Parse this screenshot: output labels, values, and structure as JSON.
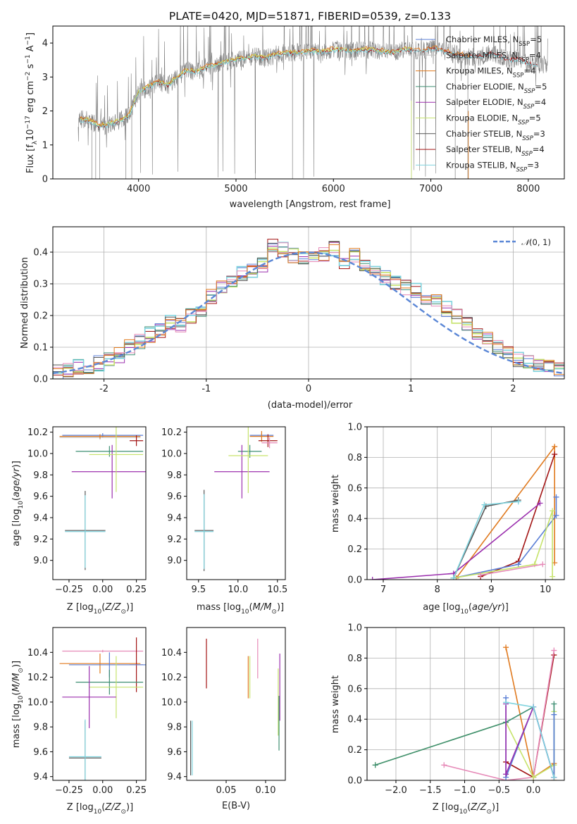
{
  "colors": {
    "Chabrier MILES": "#5b7fd6",
    "Salpeter MILES": "#c0c0c0",
    "Kroupa MILES": "#e07a1f",
    "Chabrier ELODIE": "#3f8f73",
    "Salpeter ELODIE": "#9b2fae",
    "Kroupa ELODIE": "#c6e36b",
    "Chabrier STELIB": "#555555",
    "Salpeter STELIB": "#a31515",
    "Kroupa STELIB": "#7fd3de",
    "extra_pink": "#e68ab8",
    "normal": "#5b87d6"
  },
  "chart_data": [
    {
      "id": "spectrum",
      "type": "line",
      "title": "PLATE=0420, MJD=51871, FIBERID=0539, z=0.133",
      "xlabel": "wavelength [Angstrom, rest frame]",
      "ylabel": "Flux [f_λ 10^-17 erg cm^-2 s^-1 A^-1]",
      "xlim": [
        3120,
        8370
      ],
      "ylim": [
        0,
        4.5
      ],
      "xticks": [
        4000,
        5000,
        6000,
        7000,
        8000
      ],
      "yticks": [
        0,
        1,
        2,
        3,
        4
      ],
      "legend_position": "right",
      "legend": [
        {
          "name": "Chabrier MILES",
          "nssp": "5"
        },
        {
          "name": "Salpeter MILES",
          "nssp": "4"
        },
        {
          "name": "Kroupa MILES",
          "nssp": "4"
        },
        {
          "name": "Chabrier ELODIE",
          "nssp": "5"
        },
        {
          "name": "Salpeter ELODIE",
          "nssp": "4"
        },
        {
          "name": "Kroupa ELODIE",
          "nssp": "5"
        },
        {
          "name": "Chabrier STELIB",
          "nssp": "3"
        },
        {
          "name": "Salpeter STELIB",
          "nssp": "4"
        },
        {
          "name": "Kroupa STELIB",
          "nssp": "3"
        }
      ],
      "model_x": [
        3400,
        3500,
        3600,
        3700,
        3800,
        3900,
        4000,
        4100,
        4200,
        4300,
        4400,
        4500,
        4600,
        4700,
        4800,
        4900,
        5000,
        5100,
        5200,
        5300,
        5400,
        5500,
        5600,
        5700,
        5800,
        5900,
        6000,
        6100,
        6200,
        6300,
        6400,
        6500,
        6600,
        6700,
        6800,
        6900,
        7000,
        7100,
        7200,
        7300,
        7400,
        7500,
        7600,
        7700,
        7800,
        7900,
        8000,
        8100
      ],
      "model_y": [
        1.75,
        1.72,
        1.55,
        1.6,
        1.72,
        1.85,
        2.55,
        2.7,
        2.85,
        2.75,
        3.0,
        3.2,
        3.15,
        3.3,
        3.35,
        3.45,
        3.5,
        3.55,
        3.6,
        3.55,
        3.65,
        3.7,
        3.7,
        3.75,
        3.75,
        3.75,
        3.8,
        3.8,
        3.75,
        3.8,
        3.8,
        3.75,
        3.7,
        3.8,
        3.8,
        3.75,
        3.85,
        3.8,
        3.7,
        3.65,
        3.6,
        3.6,
        3.7,
        3.65,
        3.5,
        3.55,
        3.4,
        3.35
      ],
      "data_range": [
        3380,
        8200
      ]
    },
    {
      "id": "residuals",
      "type": "histogram",
      "xlabel": "(data-model)/error",
      "ylabel": "Normed distribution",
      "xlim": [
        -2.5,
        2.5
      ],
      "ylim": [
        0,
        0.48
      ],
      "xticks": [
        -2,
        -1,
        0,
        1,
        2
      ],
      "yticks": [
        0.0,
        0.1,
        0.2,
        0.3,
        0.4
      ],
      "legend": "N(0,1)",
      "legend_position": "top-right",
      "bin_width": 0.1,
      "bin_centers": [
        -2.45,
        -2.35,
        -2.25,
        -2.15,
        -2.05,
        -1.95,
        -1.85,
        -1.75,
        -1.65,
        -1.55,
        -1.45,
        -1.35,
        -1.25,
        -1.15,
        -1.05,
        -0.95,
        -0.85,
        -0.75,
        -0.65,
        -0.55,
        -0.45,
        -0.35,
        -0.25,
        -0.15,
        -0.05,
        0.05,
        0.15,
        0.25,
        0.35,
        0.45,
        0.55,
        0.65,
        0.75,
        0.85,
        0.95,
        1.05,
        1.15,
        1.25,
        1.35,
        1.45,
        1.55,
        1.65,
        1.75,
        1.85,
        1.95,
        2.05,
        2.15,
        2.25,
        2.35,
        2.45
      ],
      "bin_values": [
        0.02,
        0.03,
        0.04,
        0.035,
        0.05,
        0.06,
        0.075,
        0.1,
        0.12,
        0.14,
        0.15,
        0.18,
        0.17,
        0.2,
        0.22,
        0.26,
        0.29,
        0.3,
        0.33,
        0.34,
        0.36,
        0.42,
        0.41,
        0.39,
        0.38,
        0.38,
        0.39,
        0.41,
        0.37,
        0.39,
        0.36,
        0.34,
        0.32,
        0.3,
        0.29,
        0.28,
        0.26,
        0.25,
        0.22,
        0.2,
        0.17,
        0.15,
        0.13,
        0.1,
        0.09,
        0.06,
        0.05,
        0.04,
        0.035,
        0.03
      ]
    },
    {
      "id": "age-vs-Z",
      "type": "errorbar",
      "xlabel": "Z [log10(Z/Z⊙)]",
      "ylabel": "age [log10(age/yr)]",
      "xlim": [
        -0.37,
        0.32
      ],
      "ylim": [
        8.82,
        10.25
      ],
      "xticks": [
        -0.25,
        0.0,
        0.25
      ],
      "yticks": [
        9.0,
        9.2,
        9.4,
        9.6,
        9.8,
        10.0,
        10.2
      ],
      "points": [
        {
          "c": "Chabrier MILES",
          "x": 0.0,
          "y": 10.17,
          "xe": 0.3,
          "ye": 0.02
        },
        {
          "c": "Salpeter MILES",
          "x": -0.02,
          "y": 10.15,
          "xe": 0.3,
          "ye": 0.02
        },
        {
          "c": "Kroupa MILES",
          "x": -0.02,
          "y": 10.16,
          "xe": 0.3,
          "ye": 0.02
        },
        {
          "c": "Chabrier ELODIE",
          "x": 0.05,
          "y": 10.02,
          "xe": 0.25,
          "ye": 0.05
        },
        {
          "c": "Salpeter ELODIE",
          "x": 0.07,
          "y": 9.83,
          "xe": 0.3,
          "ye": 0.25
        },
        {
          "c": "Kroupa ELODIE",
          "x": 0.1,
          "y": 9.99,
          "xe": 0.2,
          "ye": 0.35
        },
        {
          "c": "Chabrier STELIB",
          "x": -0.13,
          "y": 9.28,
          "xe": 0.15,
          "ye": 0.37
        },
        {
          "c": "Salpeter STELIB",
          "x": 0.25,
          "y": 10.12,
          "xe": 0.05,
          "ye": 0.05
        },
        {
          "c": "Kroupa STELIB",
          "x": -0.13,
          "y": 9.27,
          "xe": 0.15,
          "ye": 0.34
        }
      ]
    },
    {
      "id": "age-vs-mass",
      "type": "errorbar",
      "xlabel": "mass [log10(M/M⊙)]",
      "ylim": [
        8.82,
        10.25
      ],
      "xlim": [
        9.35,
        10.6
      ],
      "xticks": [
        9.5,
        10.0,
        10.5
      ],
      "yticks": [
        9.0,
        9.2,
        9.4,
        9.6,
        9.8,
        10.0,
        10.2
      ],
      "points": [
        {
          "c": "Chabrier MILES",
          "x": 10.3,
          "y": 10.17,
          "xe": 0.15,
          "ye": 0.02
        },
        {
          "c": "Kroupa MILES",
          "x": 10.3,
          "y": 10.16,
          "xe": 0.15,
          "ye": 0.05
        },
        {
          "c": "Chabrier ELODIE",
          "x": 10.15,
          "y": 10.02,
          "xe": 0.15,
          "ye": 0.06
        },
        {
          "c": "Salpeter ELODIE",
          "x": 10.05,
          "y": 9.83,
          "xe": 0.35,
          "ye": 0.25
        },
        {
          "c": "Kroupa ELODIE",
          "x": 10.13,
          "y": 9.98,
          "xe": 0.25,
          "ye": 0.35
        },
        {
          "c": "Chabrier STELIB",
          "x": 9.57,
          "y": 9.28,
          "xe": 0.12,
          "ye": 0.38
        },
        {
          "c": "Salpeter STELIB",
          "x": 10.38,
          "y": 10.12,
          "xe": 0.12,
          "ye": 0.06
        },
        {
          "c": "Kroupa STELIB",
          "x": 9.57,
          "y": 9.27,
          "xe": 0.12,
          "ye": 0.35
        },
        {
          "c": "extra_pink",
          "x": 10.4,
          "y": 10.1,
          "xe": 0.1,
          "ye": 0.05
        }
      ]
    },
    {
      "id": "massweight-vs-age",
      "type": "line",
      "xlabel": "age [log10(age/yr)]",
      "ylabel": "mass weight",
      "xlim": [
        6.7,
        10.35
      ],
      "ylim": [
        0,
        1.0
      ],
      "xticks": [
        7,
        8,
        9,
        10
      ],
      "yticks": [
        0.0,
        0.2,
        0.4,
        0.6,
        0.8,
        1.0
      ],
      "series": [
        {
          "c": "Kroupa MILES",
          "x": [
            8.35,
            10.17,
            10.17
          ],
          "y": [
            0.01,
            0.87,
            0.11
          ]
        },
        {
          "c": "Salpeter STELIB",
          "x": [
            8.8,
            9.5,
            10.17
          ],
          "y": [
            0.02,
            0.12,
            0.82
          ]
        },
        {
          "c": "Salpeter ELODIE",
          "x": [
            6.8,
            8.3,
            9.9
          ],
          "y": [
            0.0,
            0.04,
            0.5
          ]
        },
        {
          "c": "Chabrier MILES",
          "x": [
            8.3,
            9.5,
            10.2,
            10.2
          ],
          "y": [
            0.01,
            0.1,
            0.42,
            0.54
          ]
        },
        {
          "c": "Kroupa ELODIE",
          "x": [
            8.3,
            9.8,
            10.13,
            10.13
          ],
          "y": [
            0.01,
            0.1,
            0.45,
            0.02
          ]
        },
        {
          "c": "Chabrier STELIB",
          "x": [
            8.3,
            8.9,
            9.5
          ],
          "y": [
            0.01,
            0.48,
            0.52
          ]
        },
        {
          "c": "Kroupa STELIB",
          "x": [
            8.3,
            8.87,
            9.5
          ],
          "y": [
            0.01,
            0.49,
            0.51
          ]
        },
        {
          "c": "extra_pink",
          "x": [
            8.8,
            9.95
          ],
          "y": [
            0.03,
            0.1
          ]
        }
      ]
    },
    {
      "id": "mass-vs-Z",
      "type": "errorbar",
      "xlabel": "Z [log10(Z/Z⊙)]",
      "ylabel": "mass [log10(M/M⊙)]",
      "xlim": [
        -0.37,
        0.32
      ],
      "ylim": [
        9.37,
        10.6
      ],
      "xticks": [
        -0.25,
        0.0,
        0.25
      ],
      "yticks": [
        9.4,
        9.6,
        9.8,
        10.0,
        10.2,
        10.4
      ],
      "points": [
        {
          "c": "extra_pink",
          "x": 0.0,
          "y": 10.41,
          "xe": 0.3,
          "ye": 0.01
        },
        {
          "c": "Kroupa MILES",
          "x": -0.02,
          "y": 10.31,
          "xe": 0.3,
          "ye": 0.08
        },
        {
          "c": "Salpeter STELIB",
          "x": 0.25,
          "y": 10.3,
          "xe": 0.05,
          "ye": 0.22
        },
        {
          "c": "Chabrier MILES",
          "x": 0.05,
          "y": 10.3,
          "xe": 0.3,
          "ye": 0.1
        },
        {
          "c": "Chabrier ELODIE",
          "x": 0.05,
          "y": 10.16,
          "xe": 0.25,
          "ye": 0.1
        },
        {
          "c": "Kroupa ELODIE",
          "x": 0.1,
          "y": 10.12,
          "xe": 0.2,
          "ye": 0.25
        },
        {
          "c": "Salpeter ELODIE",
          "x": -0.1,
          "y": 10.04,
          "xe": 0.2,
          "ye": 0.25
        },
        {
          "c": "Chabrier STELIB",
          "x": -0.13,
          "y": 9.55,
          "xe": 0.12,
          "ye": 0.3
        },
        {
          "c": "Kroupa STELIB",
          "x": -0.13,
          "y": 9.56,
          "xe": 0.12,
          "ye": 0.3
        }
      ]
    },
    {
      "id": "mass-vs-EBV",
      "type": "errorbar",
      "xlabel": "E(B-V)",
      "xlim": [
        0.0,
        0.125
      ],
      "ylim": [
        9.37,
        10.6
      ],
      "xticks": [
        0.05,
        0.1
      ],
      "yticks": [
        9.4,
        9.6,
        9.8,
        10.0,
        10.2,
        10.4
      ],
      "points": [
        {
          "c": "Salpeter STELIB",
          "x": 0.025,
          "y": 10.31,
          "xe": 0,
          "ye": 0.2
        },
        {
          "c": "Kroupa MILES",
          "x": 0.078,
          "y": 10.2,
          "xe": 0,
          "ye": 0.17
        },
        {
          "c": "Kroupa ELODIE",
          "x": 0.08,
          "y": 10.2,
          "xe": 0,
          "ye": 0.17
        },
        {
          "c": "extra_pink",
          "x": 0.09,
          "y": 10.35,
          "xe": 0,
          "ye": 0.16
        },
        {
          "c": "Salpeter ELODIE",
          "x": 0.118,
          "y": 10.12,
          "xe": 0,
          "ye": 0.27
        },
        {
          "c": "Kroupa ELODIE",
          "x": 0.116,
          "y": 10.0,
          "xe": 0,
          "ye": 0.27
        },
        {
          "c": "Chabrier ELODIE",
          "x": 0.117,
          "y": 9.83,
          "xe": 0,
          "ye": 0.22
        },
        {
          "c": "Chabrier STELIB",
          "x": 0.005,
          "y": 9.63,
          "xe": 0,
          "ye": 0.22
        },
        {
          "c": "Kroupa STELIB",
          "x": 0.007,
          "y": 9.63,
          "xe": 0,
          "ye": 0.22
        }
      ]
    },
    {
      "id": "massweight-vs-Z",
      "type": "line",
      "xlabel": "Z [log10(Z/Z⊙)]",
      "ylabel": "mass weight",
      "xlim": [
        -2.42,
        0.45
      ],
      "ylim": [
        0,
        1.0
      ],
      "xticks": [
        -2.0,
        -1.5,
        -1.0,
        -0.5,
        0.0
      ],
      "yticks": [
        0.0,
        0.2,
        0.4,
        0.6,
        0.8,
        1.0
      ],
      "series": [
        {
          "c": "Kroupa MILES",
          "x": [
            -0.4,
            0.0,
            0.3,
            0.3
          ],
          "y": [
            0.87,
            0.02,
            0.11,
            0.0
          ]
        },
        {
          "c": "Salpeter STELIB",
          "x": [
            -0.4,
            0.0,
            0.3
          ],
          "y": [
            0.12,
            0.02,
            0.82
          ]
        },
        {
          "c": "extra_pink",
          "x": [
            -1.3,
            -0.4,
            0.0,
            0.3
          ],
          "y": [
            0.1,
            0.0,
            0.02,
            0.85
          ]
        },
        {
          "c": "Kroupa ELODIE",
          "x": [
            -2.3,
            -0.4,
            0.0,
            0.3,
            0.3
          ],
          "y": [
            0.1,
            0.38,
            0.02,
            0.1,
            0.45
          ]
        },
        {
          "c": "Chabrier ELODIE",
          "x": [
            -2.3,
            -0.4,
            0.0,
            0.3,
            0.3
          ],
          "y": [
            0.1,
            0.38,
            0.48,
            0.02,
            0.5
          ]
        },
        {
          "c": "Chabrier MILES",
          "x": [
            -0.4,
            -0.4,
            0.0,
            0.3,
            0.3
          ],
          "y": [
            0.54,
            0.02,
            0.48,
            0.02,
            0.43
          ]
        },
        {
          "c": "Salpeter ELODIE",
          "x": [
            -0.4,
            -0.4,
            0.0,
            0.3
          ],
          "y": [
            0.5,
            0.04,
            0.48,
            0.02
          ]
        },
        {
          "c": "Kroupa STELIB",
          "x": [
            -0.4,
            0.0,
            0.3
          ],
          "y": [
            0.51,
            0.48,
            0.02
          ]
        }
      ]
    }
  ]
}
